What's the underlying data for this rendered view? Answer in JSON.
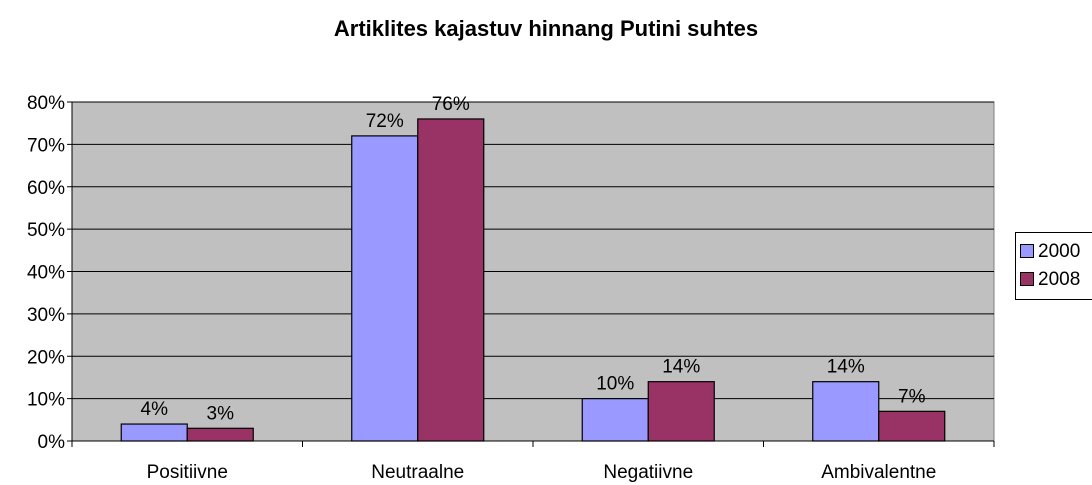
{
  "chart_data": {
    "type": "bar",
    "title": "Artiklites kajastuv hinnang Putini suhtes",
    "categories": [
      "Positiivne",
      "Neutraalne",
      "Negatiivne",
      "Ambivalentne"
    ],
    "series": [
      {
        "name": "2000",
        "color": "#9999ff",
        "values": [
          4,
          72,
          10,
          14
        ],
        "labels": [
          "4%",
          "72%",
          "10%",
          "14%"
        ]
      },
      {
        "name": "2008",
        "color": "#993366",
        "values": [
          3,
          76,
          14,
          7
        ],
        "labels": [
          "3%",
          "76%",
          "14%",
          "7%"
        ]
      }
    ],
    "ylim": [
      0,
      80
    ],
    "yticks": [
      "0%",
      "10%",
      "20%",
      "30%",
      "40%",
      "50%",
      "60%",
      "70%",
      "80%"
    ],
    "ytick_values": [
      0,
      10,
      20,
      30,
      40,
      50,
      60,
      70,
      80
    ],
    "plot_background": "#c0c0c0",
    "grid": true,
    "legend_position": "right"
  }
}
